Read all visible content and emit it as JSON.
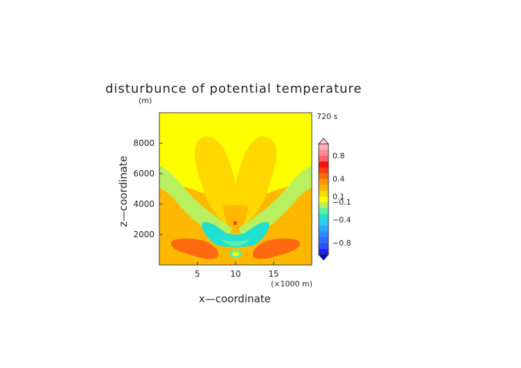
{
  "chart_data": {
    "type": "heatmap",
    "title": "disturbunce of potential temperature",
    "y_unit_label": "(m)",
    "time_label": "720 s",
    "xlabel": "x—coordinate",
    "ylabel": "z—coordinate",
    "x_unit_label": "(×1000 m)",
    "xlim": [
      0,
      20
    ],
    "ylim": [
      0,
      10000
    ],
    "x_ticks": [
      "5",
      "10",
      "15"
    ],
    "y_ticks": [
      "2000",
      "4000",
      "6000",
      "8000"
    ],
    "colorbar": {
      "labels": [
        "0.8",
        "0.4",
        "0.1",
        "−0.1",
        "−0.4",
        "−0.8"
      ],
      "levels": [
        -1.0,
        -0.9,
        -0.8,
        -0.7,
        -0.6,
        -0.5,
        -0.4,
        -0.3,
        -0.2,
        -0.1,
        0.1,
        0.2,
        0.3,
        0.4,
        0.5,
        0.6,
        0.7,
        0.8,
        0.9,
        1.0
      ],
      "colors": [
        "#1f1fff",
        "#2a4fff",
        "#2f6cff",
        "#2f88ff",
        "#2fa8ff",
        "#2fc8f2",
        "#20e0d0",
        "#58f0a8",
        "#b8f060",
        "#ffff00",
        "#ffd800",
        "#ffb800",
        "#ff9800",
        "#ff6a10",
        "#ff3c10",
        "#ff1010",
        "#ff6070",
        "#ff8c96",
        "#ffb0b8"
      ],
      "under_color": "#0000d8",
      "over_color": "#ffd0d8"
    },
    "field_features": [
      {
        "region": "background",
        "value": 0.0
      },
      {
        "region": "upper heart-shaped lobes",
        "value": 0.15
      },
      {
        "region": "central plume",
        "value": 0.2
      },
      {
        "region": "center point",
        "value": 0.5
      },
      {
        "region": "low-level arc",
        "value": -0.4
      },
      {
        "region": "lower side lobes",
        "value": 0.45
      }
    ]
  }
}
